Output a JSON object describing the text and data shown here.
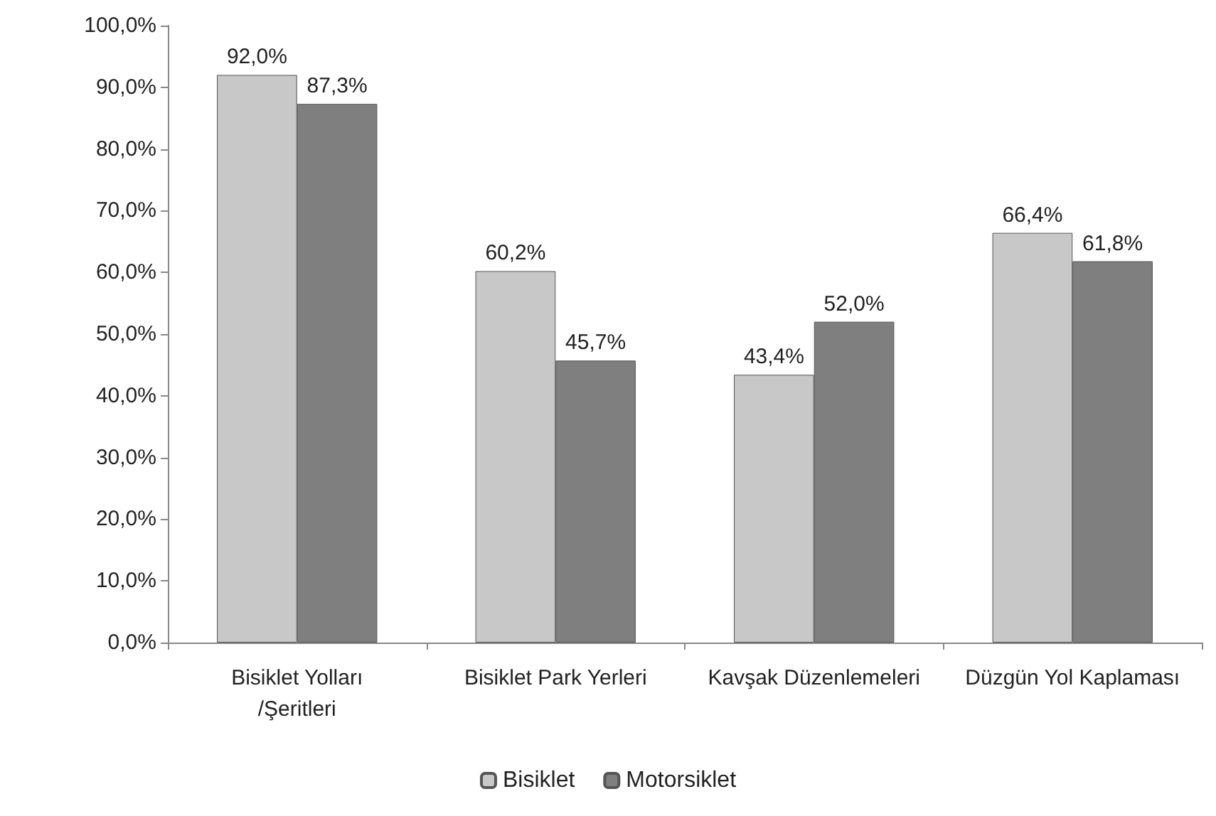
{
  "chart_data": {
    "type": "bar",
    "categories": [
      "Bisiklet Yolları\n/Şeritleri",
      "Bisiklet Park Yerleri",
      "Kavşak Düzenlemeleri",
      "Düzgün Yol Kaplaması"
    ],
    "series": [
      {
        "name": "Bisiklet",
        "color": "#c8c8c8",
        "values": [
          92.0,
          60.2,
          43.4,
          66.4
        ],
        "value_labels": [
          "92,0%",
          "60,2%",
          "43,4%",
          "66,4%"
        ]
      },
      {
        "name": "Motorsiklet",
        "color": "#7f7f7f",
        "values": [
          87.3,
          45.7,
          52.0,
          61.8
        ],
        "value_labels": [
          "87,3%",
          "45,7%",
          "52,0%",
          "61,8%"
        ]
      }
    ],
    "ylim": [
      0,
      100
    ],
    "yticks": [
      {
        "value": 0,
        "label": "0,0%"
      },
      {
        "value": 10,
        "label": "10,0%"
      },
      {
        "value": 20,
        "label": "20,0%"
      },
      {
        "value": 30,
        "label": "30,0%"
      },
      {
        "value": 40,
        "label": "40,0%"
      },
      {
        "value": 50,
        "label": "50,0%"
      },
      {
        "value": 60,
        "label": "60,0%"
      },
      {
        "value": 70,
        "label": "70,0%"
      },
      {
        "value": 80,
        "label": "80,0%"
      },
      {
        "value": 90,
        "label": "90,0%"
      },
      {
        "value": 100,
        "label": "100,0%"
      }
    ],
    "grid": false,
    "legend": "bottom"
  }
}
